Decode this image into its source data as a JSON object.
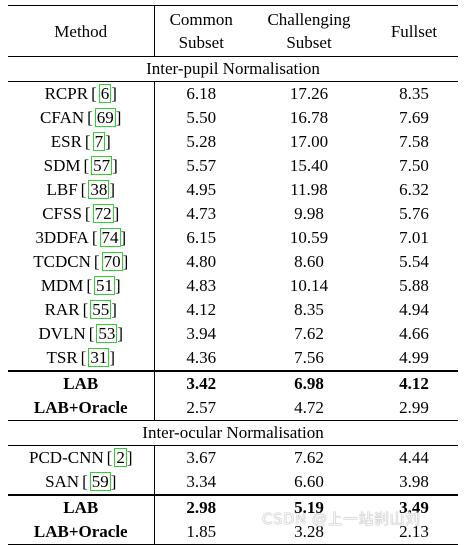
{
  "header": {
    "method": "Method",
    "common": [
      "Common",
      "Subset"
    ],
    "challenging": [
      "Challenging",
      "Subset"
    ],
    "fullset": "Fullset"
  },
  "sections": [
    {
      "title": "Inter-pupil Normalisation",
      "rows": [
        {
          "method": "RCPR",
          "cite": "6",
          "common": "6.18",
          "challenging": "17.26",
          "fullset": "8.35"
        },
        {
          "method": "CFAN",
          "cite": "69",
          "common": "5.50",
          "challenging": "16.78",
          "fullset": "7.69"
        },
        {
          "method": "ESR",
          "cite": "7",
          "common": "5.28",
          "challenging": "17.00",
          "fullset": "7.58"
        },
        {
          "method": "SDM",
          "cite": "57",
          "common": "5.57",
          "challenging": "15.40",
          "fullset": "7.50"
        },
        {
          "method": "LBF",
          "cite": "38",
          "common": "4.95",
          "challenging": "11.98",
          "fullset": "6.32"
        },
        {
          "method": "CFSS",
          "cite": "72",
          "common": "4.73",
          "challenging": "9.98",
          "fullset": "5.76"
        },
        {
          "method": "3DDFA",
          "cite": "74",
          "common": "6.15",
          "challenging": "10.59",
          "fullset": "7.01"
        },
        {
          "method": "TCDCN",
          "cite": "70",
          "common": "4.80",
          "challenging": "8.60",
          "fullset": "5.54"
        },
        {
          "method": "MDM",
          "cite": "51",
          "common": "4.83",
          "challenging": "10.14",
          "fullset": "5.88"
        },
        {
          "method": "RAR",
          "cite": "55",
          "common": "4.12",
          "challenging": "8.35",
          "fullset": "4.94"
        },
        {
          "method": "DVLN",
          "cite": "53",
          "common": "3.94",
          "challenging": "7.62",
          "fullset": "4.66"
        },
        {
          "method": "TSR",
          "cite": "31",
          "common": "4.36",
          "challenging": "7.56",
          "fullset": "4.99"
        }
      ],
      "ours": [
        {
          "method": "LAB",
          "common": "3.42",
          "challenging": "6.98",
          "fullset": "4.12",
          "bold": true
        },
        {
          "method": "LAB+Oracle",
          "common": "2.57",
          "challenging": "4.72",
          "fullset": "2.99",
          "bold": false
        }
      ]
    },
    {
      "title": "Inter-ocular Normalisation",
      "rows": [
        {
          "method": "PCD-CNN",
          "cite": "2",
          "common": "3.67",
          "challenging": "7.62",
          "fullset": "4.44"
        },
        {
          "method": "SAN",
          "cite": "59",
          "common": "3.34",
          "challenging": "6.60",
          "fullset": "3.98"
        }
      ],
      "ours": [
        {
          "method": "LAB",
          "common": "2.98",
          "challenging": "5.19",
          "fullset": "3.49",
          "bold": true
        },
        {
          "method": "LAB+Oracle",
          "common": "1.85",
          "challenging": "3.28",
          "fullset": "2.13",
          "bold": false
        }
      ]
    }
  ],
  "watermark": "CSDN @上一站刹山刘",
  "colors": {
    "citation_box": "#2fd12f"
  }
}
